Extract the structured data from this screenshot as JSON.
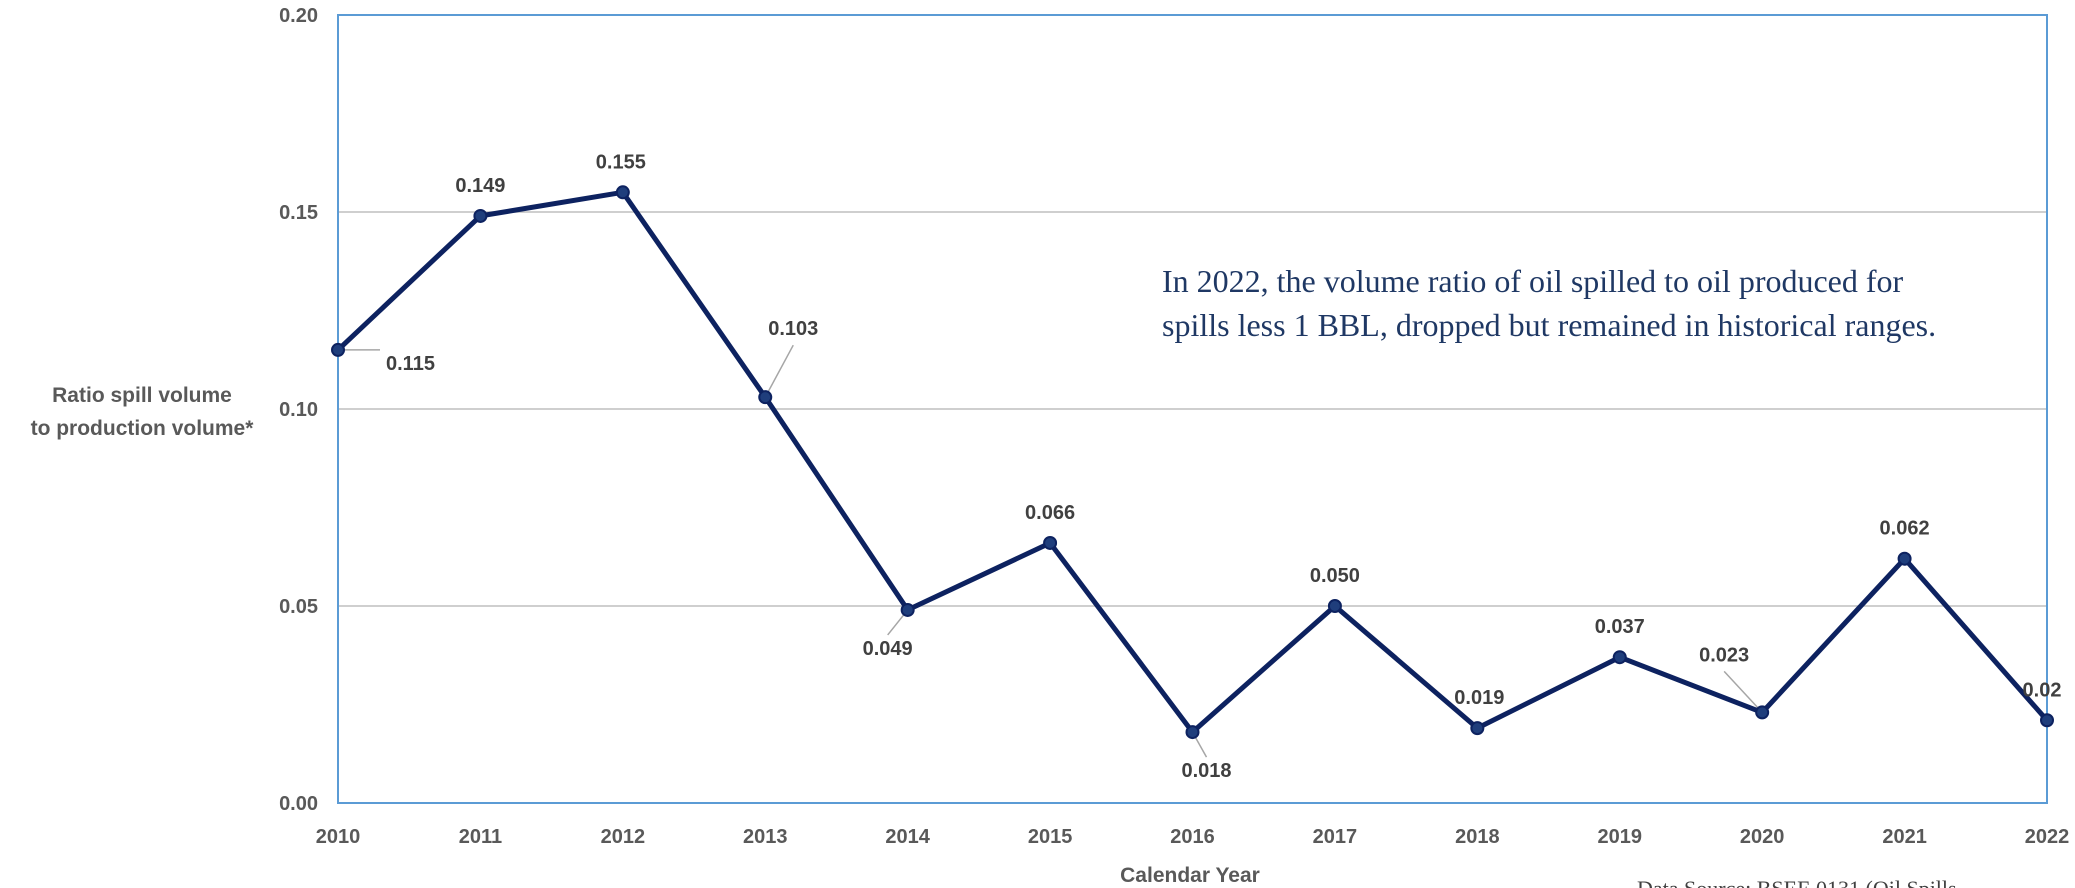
{
  "colors": {
    "line": "#0d2260",
    "marker": "#1f3e7c",
    "plot_border": "#5b9bd5",
    "gridline": "#bfbfbf",
    "leader": "#a6a6a6"
  },
  "chart_data": {
    "type": "line",
    "x": [
      2010,
      2011,
      2012,
      2013,
      2014,
      2015,
      2016,
      2017,
      2018,
      2019,
      2020,
      2021,
      2022
    ],
    "series": [
      {
        "values": [
          0.115,
          0.149,
          0.155,
          0.103,
          0.049,
          0.066,
          0.018,
          0.05,
          0.019,
          0.037,
          0.023,
          0.062,
          0.021
        ],
        "data_labels": [
          "0.115",
          "0.149",
          "0.155",
          "0.103",
          "0.049",
          "0.066",
          "0.018",
          "0.050",
          "0.019",
          "0.037",
          "0.023",
          "0.062",
          "0.02"
        ]
      }
    ],
    "xlabel": "Calendar Year",
    "ylabel_lines": [
      "Ratio spill volume",
      "to production volume*"
    ],
    "ylim": [
      0,
      0.2
    ],
    "yticks": [
      "0.00",
      "0.05",
      "0.10",
      "0.15",
      "0.20"
    ],
    "grid": true,
    "legend": "none",
    "annotation_lines": [
      "In 2022, the volume ratio of oil spilled to oil produced for",
      "spills less 1 BBL, dropped but remained in historical ranges."
    ],
    "source_text": "Data Source: BSEE 0131 (Oil Spills"
  }
}
